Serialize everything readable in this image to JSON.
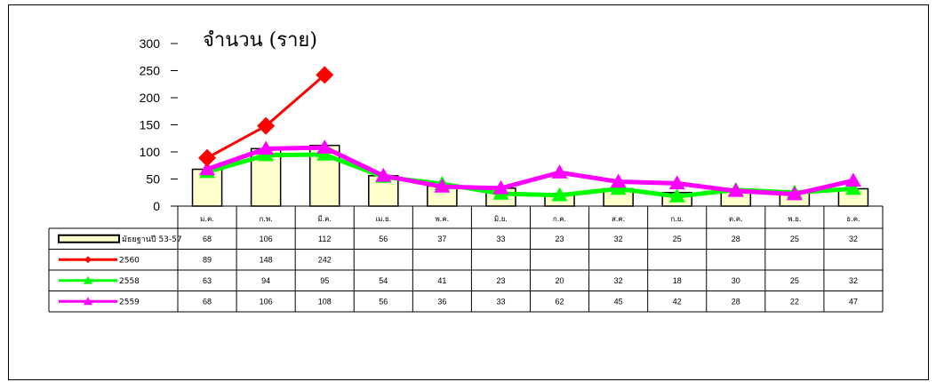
{
  "chart_data": {
    "type": "bar+line",
    "title": "จำนวน (ราย)",
    "categories": [
      "ม.ค.",
      "ก.พ.",
      "มี.ค.",
      "เม.ย.",
      "พ.ค.",
      "มิ.ย.",
      "ก.ค.",
      "ส.ค.",
      "ก.ย.",
      "ต.ค.",
      "พ.ย.",
      "ธ.ค."
    ],
    "ylim": [
      0,
      300
    ],
    "yticks": [
      0,
      50,
      100,
      150,
      200,
      250,
      300
    ],
    "grid": false,
    "legend_placement": "data table below chart",
    "series": [
      {
        "name": "มัธยฐานปี 53-57",
        "kind": "bar",
        "color": "#ffffcc",
        "values": [
          68,
          106,
          112,
          56,
          37,
          33,
          23,
          32,
          25,
          28,
          25,
          32
        ]
      },
      {
        "name": "2560",
        "kind": "line",
        "marker": "diamond",
        "color": "#ff0000",
        "values": [
          89,
          148,
          242,
          null,
          null,
          null,
          null,
          null,
          null,
          null,
          null,
          null
        ]
      },
      {
        "name": "2558",
        "kind": "line",
        "marker": "triangle",
        "color": "#00ff00",
        "values": [
          63,
          94,
          95,
          54,
          41,
          23,
          20,
          32,
          18,
          30,
          25,
          32
        ]
      },
      {
        "name": "2559",
        "kind": "line",
        "marker": "triangle",
        "color": "#ff00ff",
        "values": [
          68,
          106,
          108,
          56,
          36,
          33,
          62,
          45,
          42,
          28,
          22,
          47
        ]
      }
    ]
  }
}
